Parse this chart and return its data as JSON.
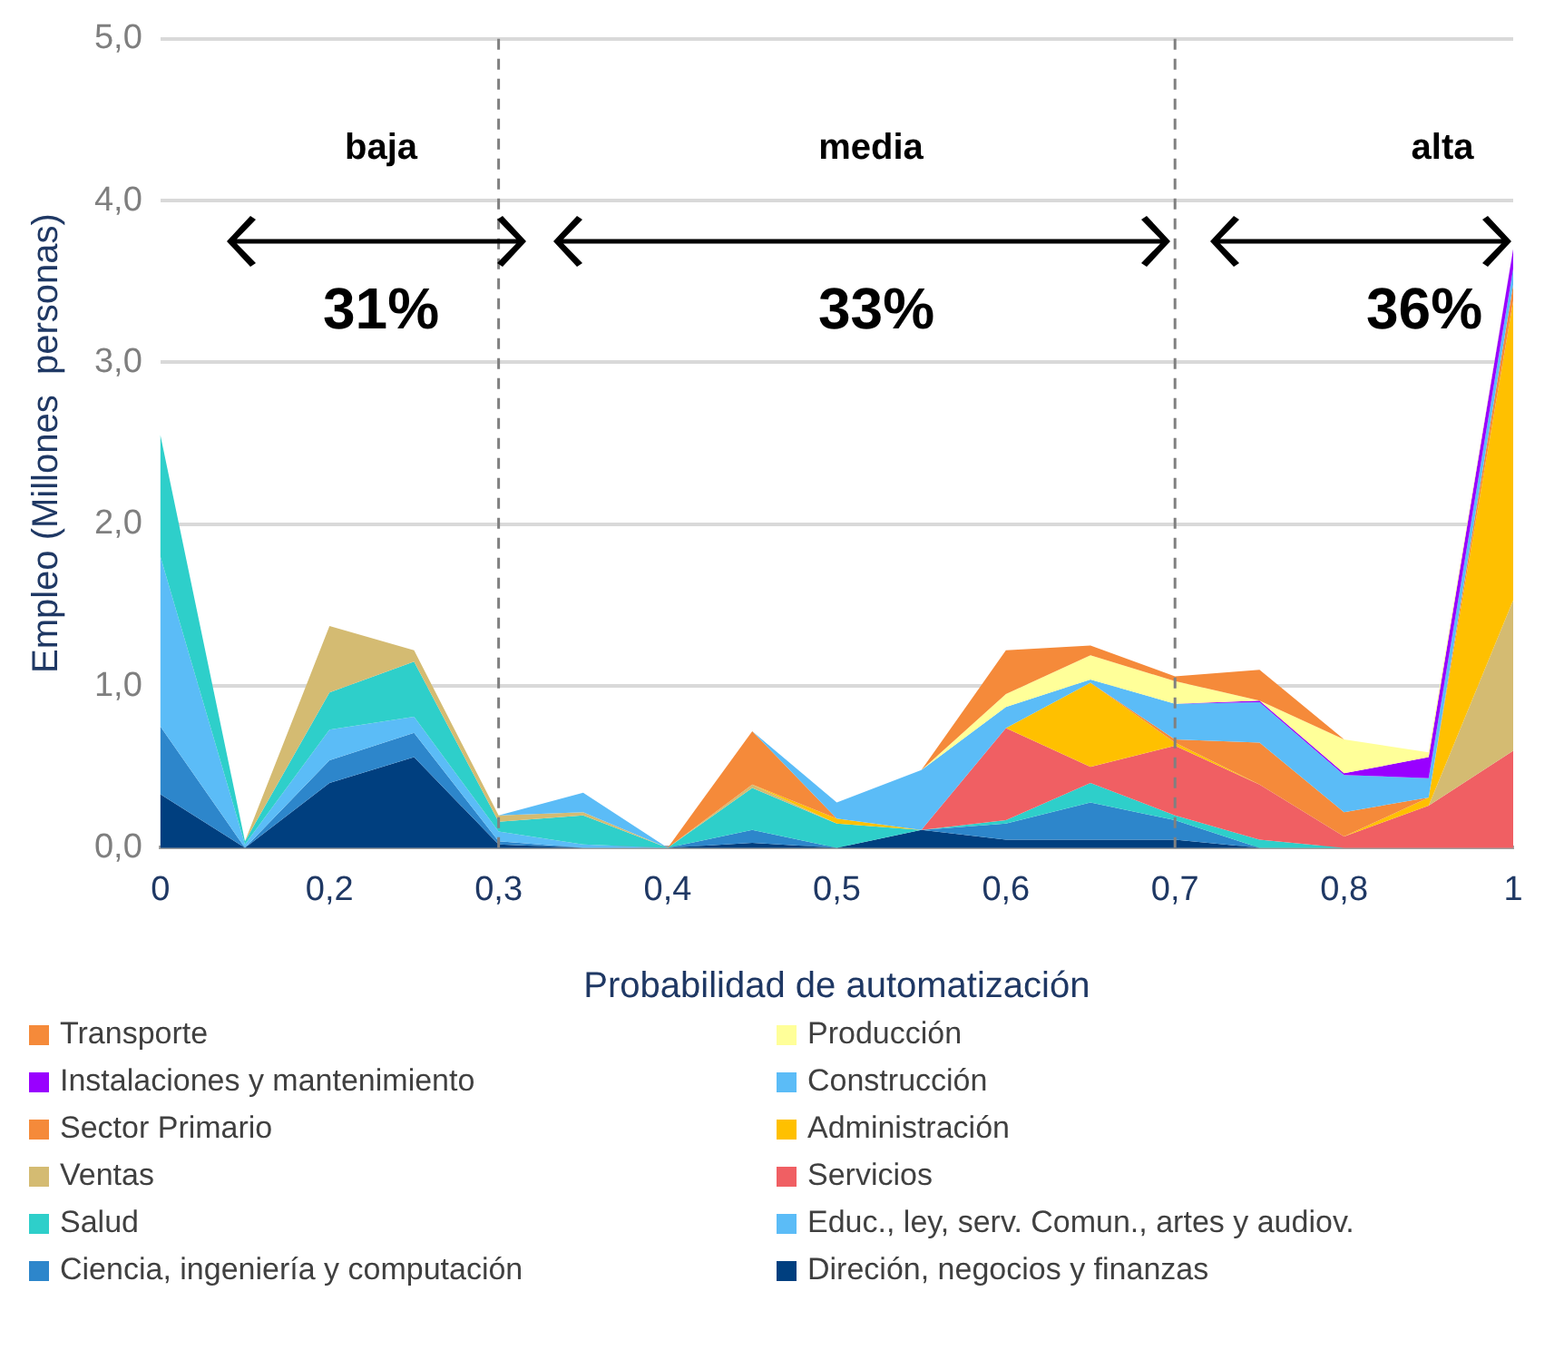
{
  "chart_data": {
    "type": "area",
    "stacked": true,
    "xlabel": "Probabilidad de automatización",
    "ylabel": "Empleo (Millones  personas)",
    "categories": [
      "0",
      null,
      "0,2",
      null,
      "0,3",
      null,
      "0,4",
      null,
      "0,5",
      null,
      "0,6",
      null,
      "0,7",
      null,
      "0,8",
      null,
      "1"
    ],
    "series": [
      {
        "name": "Direción, negocios y finanzas",
        "color": "#003f7f",
        "values": [
          0.33,
          0,
          0.4,
          0.56,
          0.02,
          0,
          0,
          0.03,
          0,
          0.11,
          0.05,
          0.05,
          0.05,
          0,
          null,
          null,
          null
        ]
      },
      {
        "name": "Ciencia, ingeniería y computación",
        "color": "#2d86cb",
        "values": [
          0.42,
          0,
          0.14,
          0.15,
          0.02,
          0,
          0,
          0.08,
          0,
          0,
          0.1,
          0.23,
          0.12,
          0,
          null,
          null,
          null
        ]
      },
      {
        "name": "Educ., ley, serv. Comun., artes y audiov.",
        "color": "#5bbcf7",
        "values": [
          1.05,
          0.02,
          0.19,
          0.1,
          0.06,
          0.02,
          0,
          null,
          null,
          null,
          null,
          null,
          null,
          null,
          null,
          null,
          null
        ]
      },
      {
        "name": "Salud",
        "color": "#2ecfca",
        "values": [
          0.75,
          0.02,
          0.23,
          0.34,
          0.06,
          0.18,
          0,
          0.26,
          0.15,
          0,
          0.02,
          0.12,
          0.03,
          0.05,
          0,
          null,
          null
        ]
      },
      {
        "name": "Servicios",
        "color": "#f05f63",
        "values": [
          null,
          null,
          null,
          null,
          null,
          null,
          null,
          null,
          null,
          0,
          0.57,
          0.1,
          0.43,
          0.34,
          0.07,
          0.26,
          0.6
        ]
      },
      {
        "name": "Ventas",
        "color": "#d4bb72",
        "values": [
          null,
          0,
          0.41,
          0.07,
          0.04,
          0.02,
          0,
          0.02,
          0,
          0,
          0,
          0,
          0,
          0,
          0,
          0,
          0.93
        ]
      },
      {
        "name": "Administración",
        "color": "#ffc000",
        "values": [
          null,
          null,
          null,
          null,
          null,
          null,
          null,
          0,
          0.03,
          0,
          0,
          0.52,
          0.02,
          0,
          0,
          0.05,
          1.85
        ]
      },
      {
        "name": "Sector Primario",
        "color": "#f58a3a",
        "values": [
          null,
          null,
          null,
          null,
          null,
          null,
          0,
          0.33,
          0,
          0,
          0,
          0,
          0.02,
          0.26,
          0.15,
          0,
          0.1
        ]
      },
      {
        "name": "Construcción",
        "color": "#5bbcf7",
        "values": [
          null,
          null,
          null,
          null,
          0,
          0.12,
          0,
          0,
          0.1,
          0.37,
          0.13,
          0.02,
          0.22,
          0.25,
          0.23,
          0.12,
          0.1
        ]
      },
      {
        "name": "Instalaciones y mantenimiento",
        "color": "#9900ff",
        "values": [
          null,
          null,
          null,
          null,
          null,
          null,
          null,
          null,
          null,
          null,
          null,
          null,
          0,
          0.01,
          0.01,
          0.13,
          0.12
        ]
      },
      {
        "name": "Producción",
        "color": "#ffff99",
        "values": [
          null,
          null,
          null,
          null,
          null,
          null,
          null,
          null,
          null,
          0,
          0.08,
          0.15,
          0.14,
          0,
          0.21,
          0.03,
          0
        ]
      },
      {
        "name": "Transporte",
        "color": "#f58a3a",
        "values": [
          null,
          null,
          null,
          null,
          null,
          null,
          null,
          null,
          null,
          0,
          0.27,
          0.06,
          0.03,
          0.19,
          0,
          null,
          null
        ]
      }
    ],
    "ylim": [
      0,
      5
    ],
    "yticks": [
      {
        "value": 0,
        "label": "0,0"
      },
      {
        "value": 1,
        "label": "1,0"
      },
      {
        "value": 2,
        "label": "2,0"
      },
      {
        "value": 3,
        "label": "3,0"
      },
      {
        "value": 4,
        "label": "4,0"
      },
      {
        "value": 5,
        "label": "5,0"
      }
    ],
    "grid": "y",
    "legend": "bottom",
    "ref_lines": [
      {
        "axis": "x",
        "value": "0,3",
        "color": "#808080",
        "line_style": "dashed"
      },
      {
        "axis": "x",
        "value": "0,7",
        "color": "#808080",
        "line_style": "dashed"
      }
    ],
    "annotations": [
      "baja",
      "media",
      "alta",
      "31%",
      "33%",
      "36%"
    ]
  }
}
